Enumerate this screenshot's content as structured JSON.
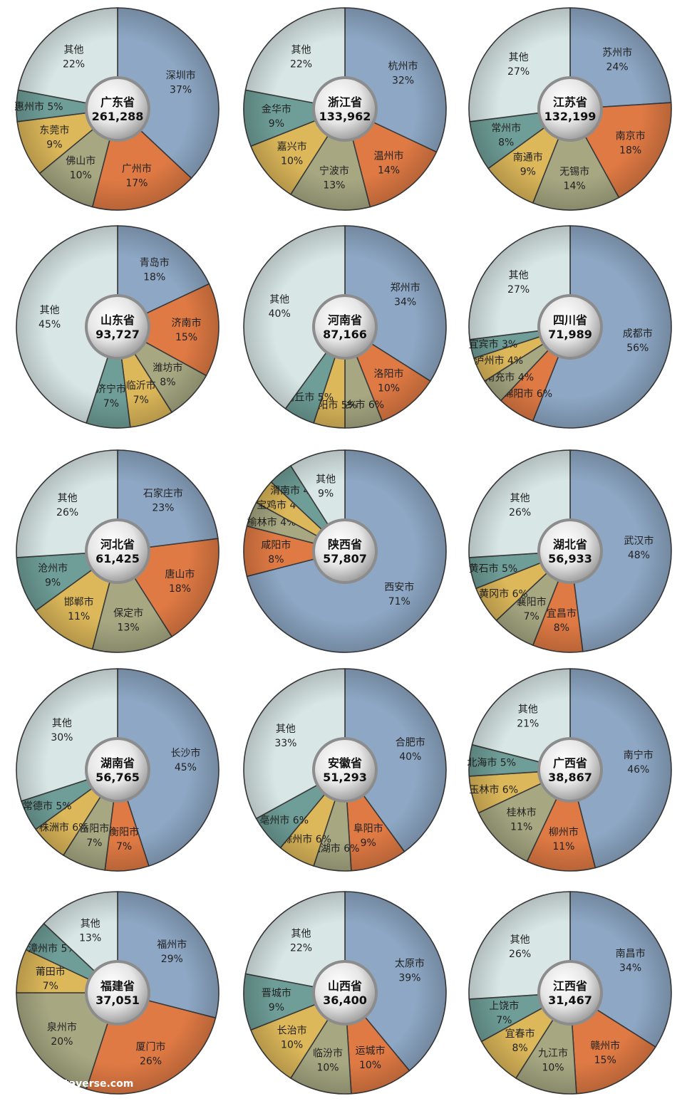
{
  "colors": [
    "#8DA7C4",
    "#E07A44",
    "#A7A882",
    "#DDB85A",
    "#6F9E98",
    "#D8E7E6"
  ],
  "watermark": "taverse.com",
  "chart_data": [
    {
      "type": "pie",
      "province": "广东省",
      "total": "261,288",
      "slices": [
        {
          "label": "深圳市",
          "value": 37
        },
        {
          "label": "广州市",
          "value": 17
        },
        {
          "label": "佛山市",
          "value": 10
        },
        {
          "label": "东莞市",
          "value": 9
        },
        {
          "label": "惠州市",
          "value": 5
        },
        {
          "label": "其他",
          "value": 22
        }
      ]
    },
    {
      "type": "pie",
      "province": "浙江省",
      "total": "133,962",
      "slices": [
        {
          "label": "杭州市",
          "value": 32
        },
        {
          "label": "温州市",
          "value": 14
        },
        {
          "label": "宁波市",
          "value": 13
        },
        {
          "label": "嘉兴市",
          "value": 10
        },
        {
          "label": "金华市",
          "value": 9
        },
        {
          "label": "其他",
          "value": 22
        }
      ]
    },
    {
      "type": "pie",
      "province": "江苏省",
      "total": "132,199",
      "slices": [
        {
          "label": "苏州市",
          "value": 24
        },
        {
          "label": "南京市",
          "value": 18
        },
        {
          "label": "无锡市",
          "value": 14
        },
        {
          "label": "南通市",
          "value": 9
        },
        {
          "label": "常州市",
          "value": 8
        },
        {
          "label": "其他",
          "value": 27
        }
      ]
    },
    {
      "type": "pie",
      "province": "山东省",
      "total": "93,727",
      "slices": [
        {
          "label": "青岛市",
          "value": 18
        },
        {
          "label": "济南市",
          "value": 15
        },
        {
          "label": "潍坊市",
          "value": 8
        },
        {
          "label": "临沂市",
          "value": 7
        },
        {
          "label": "济宁市",
          "value": 7
        },
        {
          "label": "其他",
          "value": 45
        }
      ]
    },
    {
      "type": "pie",
      "province": "河南省",
      "total": "87,166",
      "slices": [
        {
          "label": "郑州市",
          "value": 34
        },
        {
          "label": "洛阳市",
          "value": 10
        },
        {
          "label": "新乡市",
          "value": 6
        },
        {
          "label": "南阳市",
          "value": 5
        },
        {
          "label": "商丘市",
          "value": 5
        },
        {
          "label": "其他",
          "value": 40
        }
      ]
    },
    {
      "type": "pie",
      "province": "四川省",
      "total": "71,989",
      "slices": [
        {
          "label": "成都市",
          "value": 56
        },
        {
          "label": "绵阳市",
          "value": 6
        },
        {
          "label": "南充市",
          "value": 4
        },
        {
          "label": "泸州市",
          "value": 4
        },
        {
          "label": "宜宾市",
          "value": 3
        },
        {
          "label": "其他",
          "value": 27
        }
      ]
    },
    {
      "type": "pie",
      "province": "河北省",
      "total": "61,425",
      "slices": [
        {
          "label": "石家庄市",
          "value": 23
        },
        {
          "label": "唐山市",
          "value": 18
        },
        {
          "label": "保定市",
          "value": 13
        },
        {
          "label": "邯郸市",
          "value": 11
        },
        {
          "label": "沧州市",
          "value": 9
        },
        {
          "label": "其他",
          "value": 26
        }
      ]
    },
    {
      "type": "pie",
      "province": "陕西省",
      "total": "57,807",
      "slices": [
        {
          "label": "西安市",
          "value": 71
        },
        {
          "label": "咸阳市",
          "value": 8
        },
        {
          "label": "榆林市",
          "value": 4
        },
        {
          "label": "宝鸡市",
          "value": 4
        },
        {
          "label": "渭南市",
          "value": 4
        },
        {
          "label": "其他",
          "value": 9
        }
      ]
    },
    {
      "type": "pie",
      "province": "湖北省",
      "total": "56,933",
      "slices": [
        {
          "label": "武汉市",
          "value": 48
        },
        {
          "label": "宜昌市",
          "value": 8
        },
        {
          "label": "襄阳市",
          "value": 7
        },
        {
          "label": "黄冈市",
          "value": 6
        },
        {
          "label": "黄石市",
          "value": 5
        },
        {
          "label": "其他",
          "value": 26
        }
      ]
    },
    {
      "type": "pie",
      "province": "湖南省",
      "total": "56,765",
      "slices": [
        {
          "label": "长沙市",
          "value": 45
        },
        {
          "label": "衡阳市",
          "value": 7
        },
        {
          "label": "岳阳市",
          "value": 7
        },
        {
          "label": "株洲市",
          "value": 6
        },
        {
          "label": "常德市",
          "value": 5
        },
        {
          "label": "其他",
          "value": 30
        }
      ]
    },
    {
      "type": "pie",
      "province": "安徽省",
      "total": "51,293",
      "slices": [
        {
          "label": "合肥市",
          "value": 40
        },
        {
          "label": "阜阳市",
          "value": 9
        },
        {
          "label": "芜湖市",
          "value": 6
        },
        {
          "label": "滁州市",
          "value": 6
        },
        {
          "label": "亳州市",
          "value": 6
        },
        {
          "label": "其他",
          "value": 33
        }
      ]
    },
    {
      "type": "pie",
      "province": "广西省",
      "total": "38,867",
      "slices": [
        {
          "label": "南宁市",
          "value": 46
        },
        {
          "label": "柳州市",
          "value": 11
        },
        {
          "label": "桂林市",
          "value": 11
        },
        {
          "label": "玉林市",
          "value": 6
        },
        {
          "label": "北海市",
          "value": 5
        },
        {
          "label": "其他",
          "value": 21
        }
      ]
    },
    {
      "type": "pie",
      "province": "福建省",
      "total": "37,051",
      "slices": [
        {
          "label": "福州市",
          "value": 29
        },
        {
          "label": "厦门市",
          "value": 26
        },
        {
          "label": "泉州市",
          "value": 20
        },
        {
          "label": "莆田市",
          "value": 7
        },
        {
          "label": "漳州市",
          "value": 5
        },
        {
          "label": "其他",
          "value": 13
        }
      ]
    },
    {
      "type": "pie",
      "province": "山西省",
      "total": "36,400",
      "slices": [
        {
          "label": "太原市",
          "value": 39
        },
        {
          "label": "运城市",
          "value": 10
        },
        {
          "label": "临汾市",
          "value": 10
        },
        {
          "label": "长治市",
          "value": 10
        },
        {
          "label": "晋城市",
          "value": 9
        },
        {
          "label": "其他",
          "value": 22
        }
      ]
    },
    {
      "type": "pie",
      "province": "江西省",
      "total": "31,467",
      "slices": [
        {
          "label": "南昌市",
          "value": 34
        },
        {
          "label": "赣州市",
          "value": 15
        },
        {
          "label": "九江市",
          "value": 10
        },
        {
          "label": "宜春市",
          "value": 8
        },
        {
          "label": "上饶市",
          "value": 7
        },
        {
          "label": "其他",
          "value": 26
        }
      ]
    }
  ]
}
